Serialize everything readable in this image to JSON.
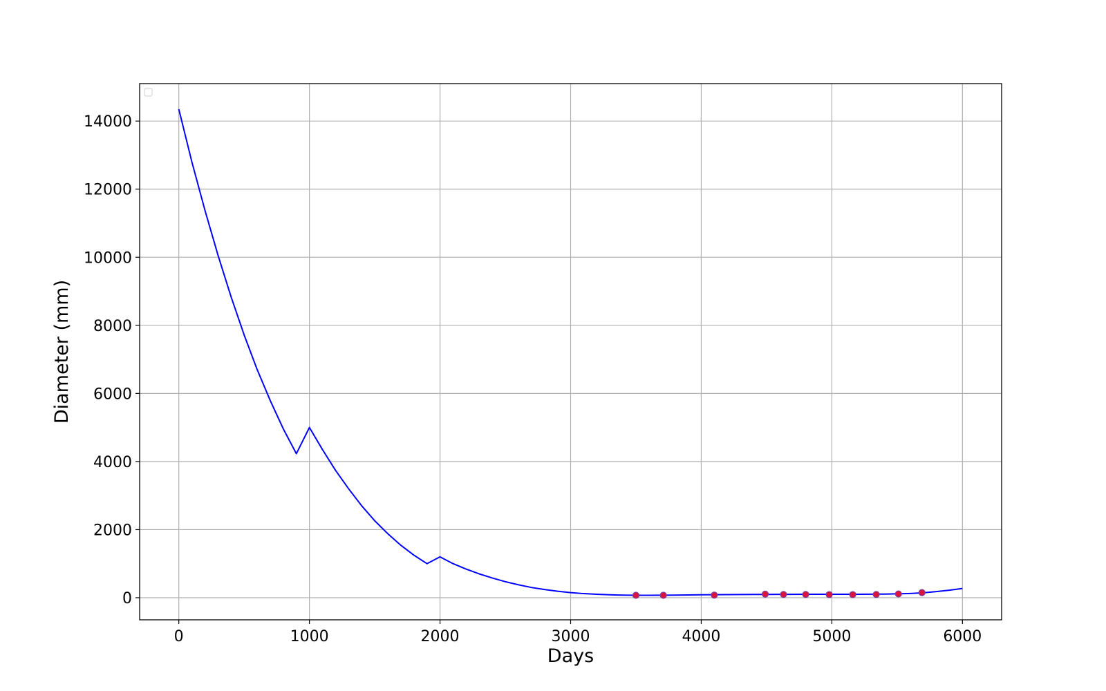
{
  "colors": {
    "curve": "#0000ff",
    "points_fill": "#dc143c",
    "points_edge": "#7b3fa0",
    "grid": "#b0b0b0",
    "frame": "#000000"
  },
  "chart_data": {
    "type": "line",
    "xlabel": "Days",
    "ylabel": "Diameter (mm)",
    "xlim": [
      -300,
      6300
    ],
    "ylim": [
      -650,
      15100
    ],
    "xticks": [
      0,
      1000,
      2000,
      3000,
      4000,
      5000,
      6000
    ],
    "yticks": [
      0,
      2000,
      4000,
      6000,
      8000,
      10000,
      12000,
      14000
    ],
    "grid": true,
    "legend": {
      "placement": "top-left",
      "entries": []
    },
    "series": [
      {
        "kind": "line",
        "color": "#0000ff",
        "x": [
          0,
          100,
          200,
          300,
          400,
          500,
          600,
          700,
          800,
          900,
          1000,
          1100,
          1200,
          1300,
          1400,
          1500,
          1600,
          1700,
          1800,
          1900,
          2000,
          2100,
          2200,
          2300,
          2400,
          2500,
          2600,
          2700,
          2800,
          2900,
          3000,
          3100,
          3200,
          3300,
          3400,
          3500,
          3600,
          3700,
          3800,
          3900,
          4000,
          4100,
          4200,
          4300,
          4400,
          4500,
          4600,
          4700,
          4800,
          4900,
          5000,
          5100,
          5200,
          5300,
          5400,
          5500,
          5600,
          5700,
          5800,
          5900,
          6000
        ],
        "y": [
          14350,
          12800,
          11380,
          10060,
          8840,
          7720,
          6700,
          5790,
          4960,
          4230,
          5000,
          4350,
          3740,
          3200,
          2700,
          2260,
          1880,
          1540,
          1250,
          1000,
          1200,
          1000,
          840,
          700,
          580,
          470,
          380,
          300,
          240,
          190,
          150,
          120,
          100,
          85,
          75,
          70,
          70,
          72,
          75,
          80,
          85,
          88,
          90,
          93,
          95,
          97,
          98,
          99,
          100,
          100,
          100,
          100,
          101,
          103,
          107,
          113,
          125,
          145,
          180,
          220,
          270
        ]
      },
      {
        "kind": "scatter",
        "color": "#dc143c",
        "x": [
          3500,
          3710,
          4100,
          4490,
          4630,
          4800,
          4980,
          5160,
          5340,
          5510,
          5690
        ],
        "y": [
          70,
          70,
          75,
          105,
          95,
          95,
          90,
          90,
          95,
          110,
          150
        ]
      }
    ]
  }
}
